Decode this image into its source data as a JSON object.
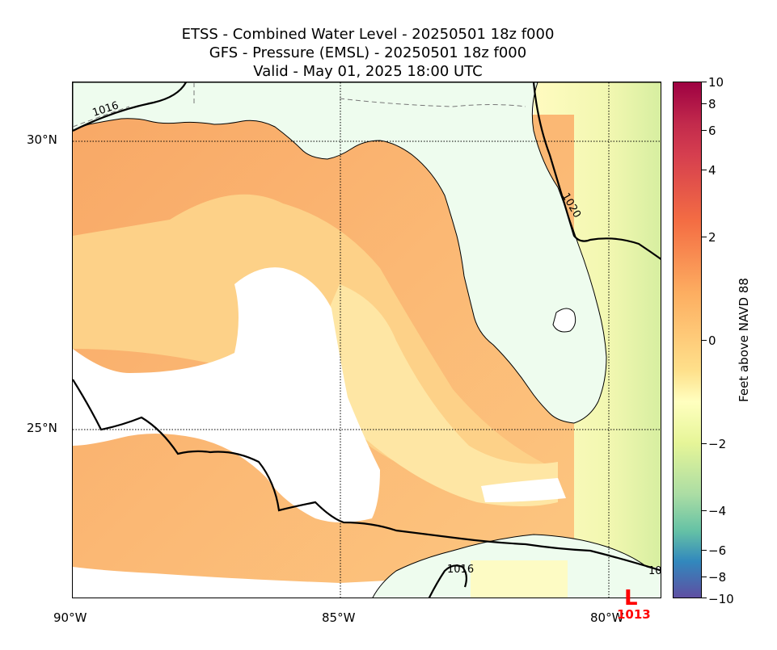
{
  "title": {
    "line1": "ETSS - Combined Water Level - 20250501 18z f000",
    "line2": "GFS - Pressure (EMSL) - 20250501 18z f000",
    "line3": "Valid - May 01, 2025 18:00 UTC"
  },
  "axes": {
    "lat_labels": [
      "30°N",
      "25°N"
    ],
    "lon_labels": [
      "90°W",
      "85°W",
      "80°W"
    ]
  },
  "isobars": {
    "label_1016_nw": "1016",
    "label_1020": "1020",
    "label_1016_cuba": "1016",
    "label_10_se": "10"
  },
  "low_center": {
    "symbol": "L",
    "value": "1013"
  },
  "colorbar": {
    "title": "Feet above NAVD 88",
    "ticks": [
      "10",
      "8",
      "6",
      "4",
      "2",
      "0",
      "−2",
      "−4",
      "−6",
      "−8",
      "−10"
    ],
    "colors": [
      "#9e0142",
      "#d53e4f",
      "#f46d43",
      "#fdae61",
      "#fee08b",
      "#ffffbf",
      "#e6f598",
      "#abdda4",
      "#66c2a5",
      "#3288bd",
      "#5e4fa2"
    ]
  },
  "map_colors": {
    "land": "#eefcee",
    "water_high": "#f4a460",
    "water_mid": "#fdcc80",
    "water_low": "#fff4b0",
    "no_data": "#ffffff"
  }
}
